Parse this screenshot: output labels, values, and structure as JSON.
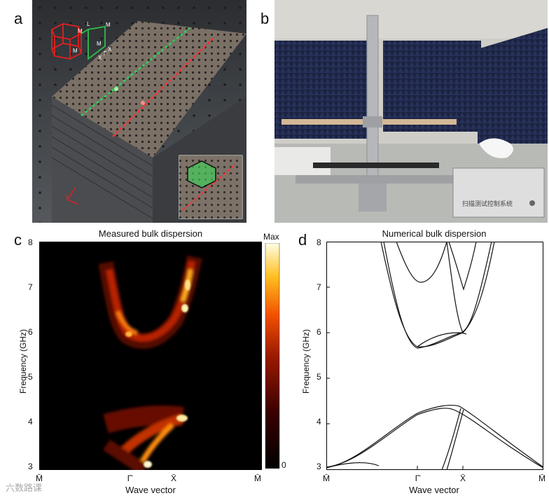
{
  "panels": {
    "a": {
      "letter": "a"
    },
    "b": {
      "letter": "b",
      "device_label": "扫描测试控制系统"
    },
    "c": {
      "letter": "c",
      "title": "Measured bulk dispersion",
      "ylabel": "Frequency (GHz)",
      "xlabel": "Wave vector",
      "yticks": [
        "8",
        "7",
        "6",
        "5",
        "4",
        "3"
      ],
      "xticks": [
        "M̄",
        "Γ̄",
        "X̄",
        "M̄"
      ],
      "colorbar_max": "Max",
      "colorbar_min": "0"
    },
    "d": {
      "letter": "d",
      "title": "Numerical bulk dispersion",
      "ylabel": "Frequency (GHz)",
      "xlabel": "Wave vector",
      "yticks": [
        "8",
        "7",
        "6",
        "5",
        "4",
        "3"
      ],
      "xticks": [
        "M̄",
        "Γ̄",
        "X̄",
        "M̄"
      ]
    }
  },
  "lattice_labels": {
    "l": "L",
    "m1": "M",
    "m2": "M",
    "m3": "M",
    "m4": "M",
    "x1": "X",
    "x2": "X",
    "g": "Γ"
  },
  "watermark": "六数路课",
  "chart_data": [
    {
      "type": "heatmap",
      "title": "Measured bulk dispersion",
      "xlabel": "Wave vector",
      "ylabel": "Frequency (GHz)",
      "x_ticklabels": [
        "M̄",
        "Γ̄",
        "X̄",
        "M̄"
      ],
      "ylim": [
        3,
        8
      ],
      "colorbar": [
        "0",
        "Max"
      ],
      "colormap": [
        "#000000",
        "#3a0000",
        "#9c1a00",
        "#f25000",
        "#ffbf20",
        "#ffffe6"
      ]
    },
    {
      "type": "line",
      "title": "Numerical bulk dispersion",
      "xlabel": "Wave vector",
      "ylabel": "Frequency (GHz)",
      "x_ticklabels": [
        "M̄",
        "Γ̄",
        "X̄",
        "M̄"
      ],
      "ylim": [
        3,
        8
      ]
    }
  ]
}
